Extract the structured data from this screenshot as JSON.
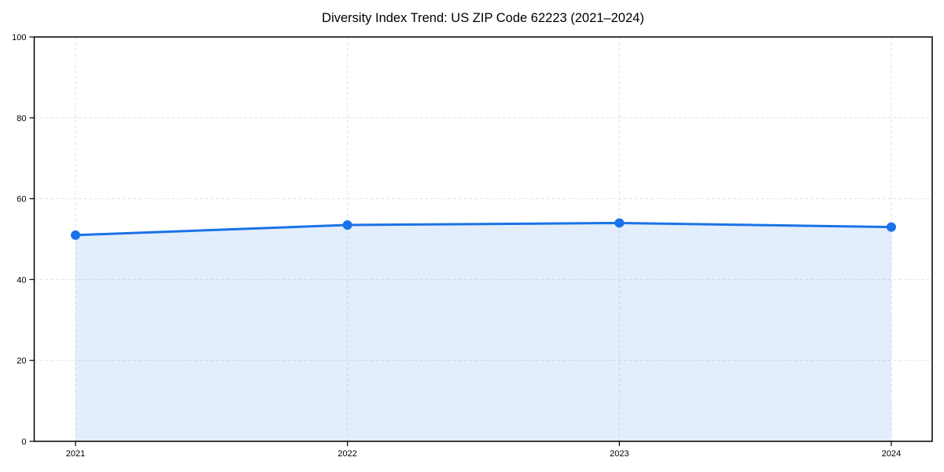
{
  "chart_data": {
    "type": "line",
    "title": "Diversity Index Trend: US ZIP Code 62223 (2021–2024)",
    "x": [
      2021,
      2022,
      2023,
      2024
    ],
    "categories": [
      "2021",
      "2022",
      "2023",
      "2024"
    ],
    "series": [
      {
        "name": "Diversity Index",
        "values": [
          51,
          53.5,
          54,
          53
        ]
      }
    ],
    "xlabel": "",
    "ylabel": "",
    "ylim": [
      0,
      100
    ],
    "yticks": [
      0,
      20,
      40,
      60,
      80,
      100
    ],
    "ytick_labels": [
      "0",
      "20",
      "40",
      "60",
      "80",
      "100"
    ],
    "xtick_labels": [
      "2021",
      "2022",
      "2023",
      "2024"
    ],
    "grid": true,
    "grid_style": "dashed",
    "legend": false,
    "area_fill": true,
    "marker": "circle",
    "colors": {
      "line": "#1a73e8",
      "marker": "#1a73e8",
      "area_fill": "#1a73e8",
      "area_fill_opacity": 0.12,
      "gridline": "#e2e2e2",
      "spine": "#000000",
      "text": "#000000",
      "background": "#ffffff"
    }
  }
}
